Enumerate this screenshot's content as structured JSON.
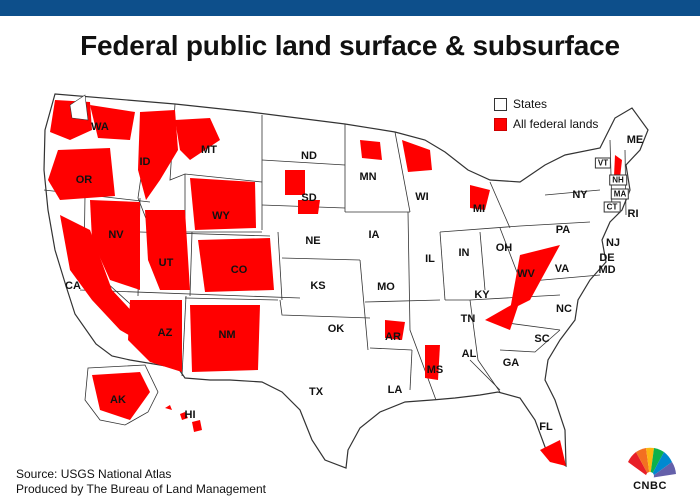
{
  "title": "Federal public land surface & subsurface",
  "legend": [
    {
      "label": "States",
      "color": "#ffffff"
    },
    {
      "label": "All federal lands",
      "color": "#ff0000"
    }
  ],
  "states": {
    "WA": "WA",
    "OR": "OR",
    "ID": "ID",
    "MT": "MT",
    "ND": "ND",
    "SD": "SD",
    "WY": "WY",
    "NV": "NV",
    "CA": "CA",
    "UT": "UT",
    "CO": "CO",
    "NE": "NE",
    "KS": "KS",
    "AZ": "AZ",
    "NM": "NM",
    "OK": "OK",
    "TX": "TX",
    "MN": "MN",
    "IA": "IA",
    "MO": "MO",
    "AR": "AR",
    "LA": "LA",
    "WI": "WI",
    "IL": "IL",
    "MS": "MS",
    "MI": "MI",
    "IN": "IN",
    "OH": "OH",
    "KY": "KY",
    "TN": "TN",
    "AL": "AL",
    "GA": "GA",
    "FL": "FL",
    "SC": "SC",
    "NC": "NC",
    "VA": "VA",
    "WV": "WV",
    "PA": "PA",
    "NY": "NY",
    "ME": "ME",
    "VT": "VT",
    "NH": "NH",
    "MA": "MA",
    "CT": "CT",
    "RI": "RI",
    "NJ": "NJ",
    "DE": "DE",
    "MD": "MD",
    "AK": "AK",
    "HI": "HI"
  },
  "source_line1": "Source: USGS National Atlas",
  "source_line2": "Produced by The Bureau of Land Management",
  "logo_text": "CNBC",
  "colors": {
    "federal": "#ff0000",
    "header": "#0d4f8b"
  }
}
